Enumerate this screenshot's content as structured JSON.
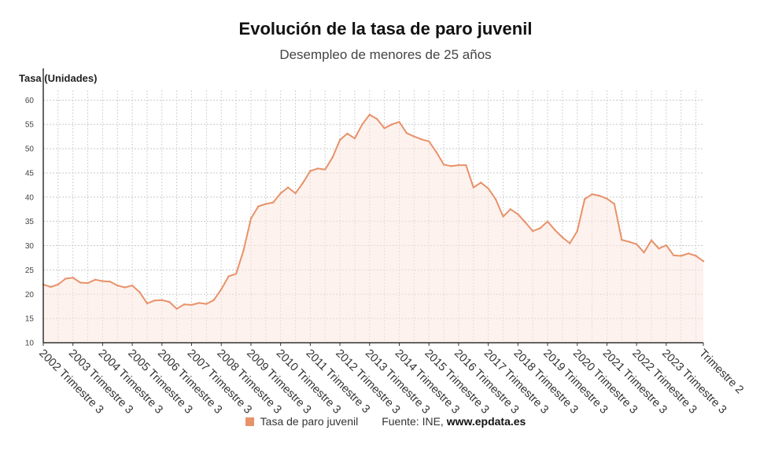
{
  "chart_data": {
    "type": "area",
    "title": "Evolución de la tasa de paro juvenil",
    "subtitle": "Desempleo de menores de 25 años",
    "ylabel": "Tasa (Unidades)",
    "ylim": [
      10,
      62
    ],
    "yticks": [
      10,
      15,
      20,
      25,
      30,
      35,
      40,
      45,
      50,
      55,
      60
    ],
    "grid": true,
    "x_tick_labels": [
      "2002 Trimestre 3",
      "2003 Trimestre 3",
      "2004 Trimestre 3",
      "2005 Trimestre 3",
      "2006 Trimestre 3",
      "2007 Trimestre 3",
      "2008 Trimestre 3",
      "2009 Trimestre 3",
      "2010 Trimestre 3",
      "2011 Trimestre 3",
      "2012 Trimestre 3",
      "2013 Trimestre 3",
      "2014 Trimestre 3",
      "2015 Trimestre 3",
      "2016 Trimestre 3",
      "2017 Trimestre 3",
      "2018 Trimestre 3",
      "2019 Trimestre 3",
      "2020 Trimestre 3",
      "2021 Trimestre 3",
      "2022 Trimestre 3",
      "2023 Trimestre 3",
      "Trimestre 2"
    ],
    "series": [
      {
        "name": "Tasa de paro juvenil",
        "color": "#e8926a",
        "values": [
          22.0,
          21.5,
          22.0,
          23.2,
          23.4,
          22.4,
          22.3,
          23.0,
          22.7,
          22.6,
          21.8,
          21.4,
          21.8,
          20.4,
          18.1,
          18.7,
          18.8,
          18.4,
          17.0,
          17.9,
          17.8,
          18.2,
          18.0,
          18.8,
          21.0,
          23.7,
          24.2,
          29.0,
          35.6,
          38.1,
          38.6,
          38.9,
          40.8,
          42.0,
          40.8,
          42.9,
          45.4,
          45.9,
          45.7,
          48.2,
          51.8,
          53.1,
          52.1,
          55.0,
          57.0,
          56.1,
          54.2,
          55.0,
          55.5,
          53.2,
          52.5,
          51.9,
          51.5,
          49.3,
          46.7,
          46.4,
          46.6,
          46.6,
          42.0,
          43.0,
          41.8,
          39.6,
          36.0,
          37.5,
          36.5,
          34.8,
          33.0,
          33.6,
          35.0,
          33.2,
          31.7,
          30.5,
          33.0,
          39.6,
          40.6,
          40.3,
          39.7,
          38.6,
          31.2,
          30.8,
          30.3,
          28.6,
          31.1,
          29.4,
          30.1,
          28.0,
          27.9,
          28.4,
          27.9,
          26.8
        ]
      }
    ]
  },
  "legend": {
    "series_label": "Tasa de paro juvenil",
    "color": "#e8926a"
  },
  "source": {
    "prefix": "Fuente: INE, ",
    "site": "www.epdata.es"
  }
}
